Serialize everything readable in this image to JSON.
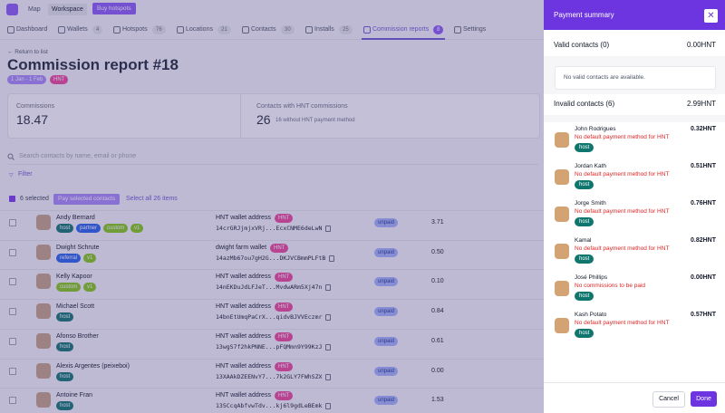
{
  "topbar": {
    "nav": [
      "Map",
      "Workspace"
    ],
    "button": "Buy hotspots"
  },
  "tabs": [
    {
      "label": "Dashboard"
    },
    {
      "label": "Wallets",
      "count": "4"
    },
    {
      "label": "Hotspots",
      "count": "76"
    },
    {
      "label": "Locations",
      "count": "21"
    },
    {
      "label": "Contacts",
      "count": "30"
    },
    {
      "label": "Installs",
      "count": "25"
    },
    {
      "label": "Commission reports",
      "count": "8"
    },
    {
      "label": "Settings"
    }
  ],
  "header": {
    "back": "← Return to list",
    "title": "Commission report #18",
    "badges": [
      "1 Jan - 1 Feb",
      "HNT"
    ]
  },
  "stats": [
    {
      "label": "Commissions",
      "value": "18.47"
    },
    {
      "label": "Contacts with HNT commissions",
      "value": "26",
      "note": "16 without HNT payment method"
    }
  ],
  "search": "Search contacts by name, email or phone",
  "filter": "Filter",
  "selection": {
    "count": "6 selected",
    "pay": "Pay selected contacts",
    "all": "Select all 26 items"
  },
  "rows": [
    {
      "name": "Andy Bernard",
      "tags": [
        "host",
        "partner",
        "custom",
        "v1"
      ],
      "wallet": "HNT wallet address",
      "currency": "HNT",
      "address": "14crGRJjmjxVRj...EcxCNME6deLwN",
      "status": "unpaid",
      "amount": "3.71"
    },
    {
      "name": "Dwight Schrute",
      "tags": [
        "referral",
        "v1"
      ],
      "wallet": "dwight farm wallet",
      "currency": "HNT",
      "address": "14azMb67ou7gH2G...DKJVCBmmPLFtB",
      "status": "unpaid",
      "amount": "0.50"
    },
    {
      "name": "Kelly Kapoor",
      "tags": [
        "custom",
        "v1"
      ],
      "wallet": "HNT wallet address",
      "currency": "HNT",
      "address": "14nEKDuJdLFJeT...MvdwARm5Xj47n",
      "status": "unpaid",
      "amount": "0.10"
    },
    {
      "name": "Michael Scott",
      "tags": [
        "host"
      ],
      "wallet": "HNT wallet address",
      "currency": "HNT",
      "address": "14bnEtUmqPaCrX...qidvBJVVEczmr",
      "status": "unpaid",
      "amount": "0.84"
    },
    {
      "name": "Afonso Brother",
      "tags": [
        "host"
      ],
      "wallet": "HNT wallet address",
      "currency": "HNT",
      "address": "13wgS7f2hkPNNE...pFQMmn9Y99KzJ",
      "status": "unpaid",
      "amount": "0.61"
    },
    {
      "name": "Alexis Argentes (peixeboi)",
      "tags": [
        "host"
      ],
      "wallet": "HNT wallet address",
      "currency": "HNT",
      "address": "13XAAkDZEENvY7...7k2GLY7FWhSZX",
      "status": "unpaid",
      "amount": "0.00"
    },
    {
      "name": "Antoine Fran",
      "tags": [
        "host"
      ],
      "wallet": "HNT wallet address",
      "currency": "HNT",
      "address": "135CcqAbfvwTdv...kj6l9gdLeBEmk",
      "status": "unpaid",
      "amount": "1.53"
    }
  ],
  "panel": {
    "title": "Payment summary",
    "valid": {
      "label": "Valid contacts (0)",
      "total": "0.00HNT",
      "empty": "No valid contacts are available."
    },
    "invalid": {
      "label": "Invalid contacts (6)",
      "total": "2.99HNT"
    },
    "contacts": [
      {
        "name": "John Rodrigues",
        "reason": "No default payment method for HNT",
        "tag": "host",
        "amount": "0.32HNT"
      },
      {
        "name": "Jordan Kath",
        "reason": "No default payment method for HNT",
        "tag": "host",
        "amount": "0.51HNT"
      },
      {
        "name": "Jorge Smith",
        "reason": "No default payment method for HNT",
        "tag": "host",
        "amount": "0.76HNT"
      },
      {
        "name": "Kamal",
        "reason": "No default payment method for HNT",
        "tag": "host",
        "amount": "0.82HNT"
      },
      {
        "name": "José Phillips",
        "reason": "No commissions to be paid",
        "tag": "host",
        "amount": "0.00HNT"
      },
      {
        "name": "Kash Potato",
        "reason": "No default payment method for HNT",
        "tag": "host",
        "amount": "0.57HNT"
      }
    ],
    "cancel": "Cancel",
    "done": "Done"
  }
}
